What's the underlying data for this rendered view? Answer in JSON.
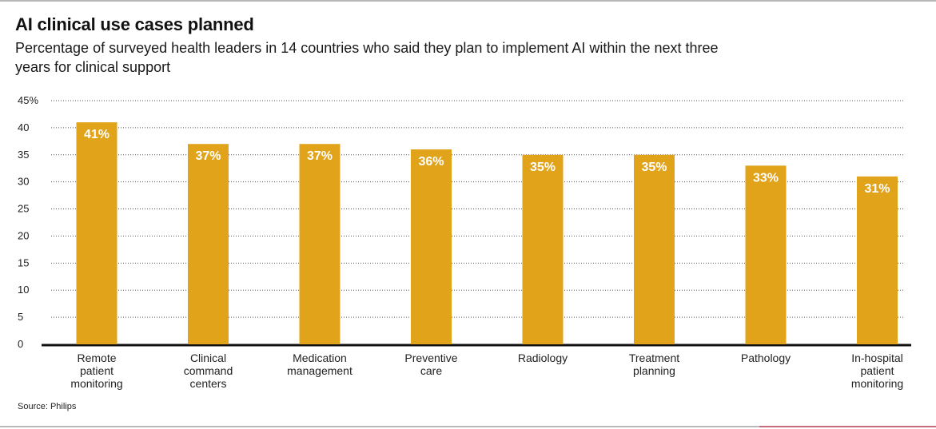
{
  "chart_data": {
    "type": "bar",
    "title": "AI clinical use cases planned",
    "subtitle": "Percentage of surveyed health leaders in 14 countries who said they plan to implement AI within the next three years for clinical support",
    "categories": [
      "Remote patient monitoring",
      "Clinical command centers",
      "Medication management",
      "Preventive care",
      "Radiology",
      "Treatment planning",
      "Pathology",
      "In-hospital patient monitoring"
    ],
    "category_lines": [
      [
        "Remote",
        "patient",
        "monitoring"
      ],
      [
        "Clinical",
        "command",
        "centers"
      ],
      [
        "Medication",
        "management"
      ],
      [
        "Preventive",
        "care"
      ],
      [
        "Radiology"
      ],
      [
        "Treatment",
        "planning"
      ],
      [
        "Pathology"
      ],
      [
        "In-hospital",
        "patient",
        "monitoring"
      ]
    ],
    "values": [
      41,
      37,
      37,
      36,
      35,
      35,
      33,
      31
    ],
    "value_labels": [
      "41%",
      "37%",
      "37%",
      "36%",
      "35%",
      "35%",
      "33%",
      "31%"
    ],
    "xlabel": "",
    "ylabel": "",
    "ylim": [
      0,
      45
    ],
    "y_ticks": [
      0,
      5,
      10,
      15,
      20,
      25,
      30,
      35,
      40,
      45
    ],
    "y_tick_labels": [
      "0",
      "5",
      "10",
      "15",
      "20",
      "25",
      "30",
      "35",
      "40",
      "45%"
    ],
    "grid": "dotted horizontal",
    "bar_color": "#E0A31A"
  },
  "source": "Source: Philips"
}
